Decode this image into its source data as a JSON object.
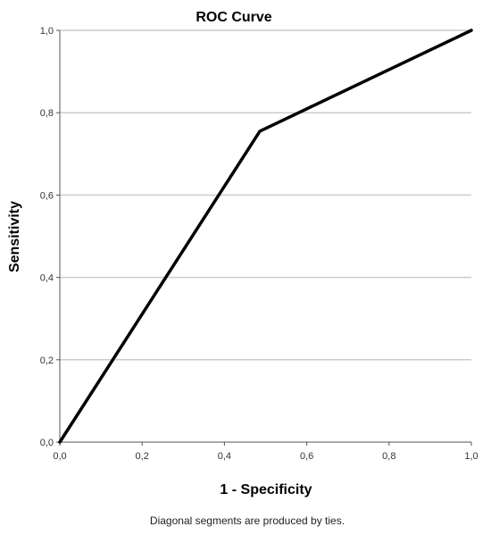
{
  "chart_data": {
    "type": "line",
    "title": "ROC Curve",
    "xlabel": "1 - Specificity",
    "ylabel": "Sensitivity",
    "footnote": "Diagonal segments are produced by ties.",
    "xlim": [
      0,
      1
    ],
    "ylim": [
      0,
      1
    ],
    "grid": "horizontal",
    "x_ticks": [
      "0,0",
      "0,2",
      "0,4",
      "0,6",
      "0,8",
      "1,0"
    ],
    "y_ticks": [
      "0,0",
      "0,2",
      "0,4",
      "0,6",
      "0,8",
      "1,0"
    ],
    "x_tick_values": [
      0,
      0.2,
      0.4,
      0.6,
      0.8,
      1.0
    ],
    "y_tick_values": [
      0,
      0.2,
      0.4,
      0.6,
      0.8,
      1.0
    ],
    "series": [
      {
        "x": [
          0,
          0.486,
          1.0
        ],
        "y": [
          0,
          0.755,
          1.0
        ],
        "color": "#000000"
      }
    ]
  }
}
